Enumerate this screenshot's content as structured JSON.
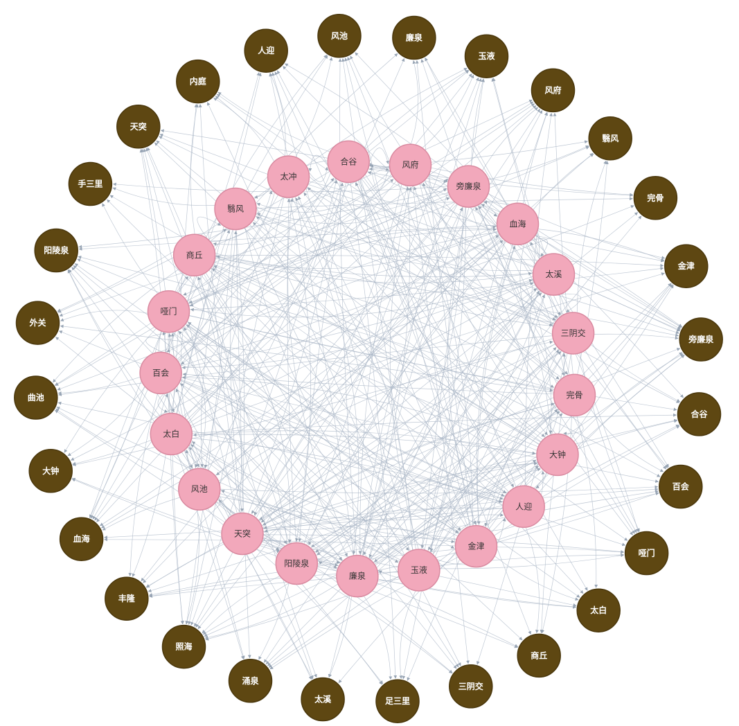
{
  "graph": {
    "colors": {
      "outer_fill": "#5e4712",
      "outer_stroke": "#4a370c",
      "inner_fill": "#f2a8bb",
      "inner_stroke": "#d98aa0",
      "edge": "#a9b6c5",
      "arrow": "#97a4b4"
    },
    "outer_nodes": [
      "风池",
      "廉泉",
      "玉液",
      "风府",
      "翳风",
      "完骨",
      "金津",
      "旁廉泉",
      "合谷",
      "百会",
      "哑门",
      "太白",
      "商丘",
      "三阴交",
      "足三里",
      "太溪",
      "涌泉",
      "照海",
      "丰隆",
      "血海",
      "大钟",
      "曲池",
      "外关",
      "阳陵泉",
      "手三里",
      "天突",
      "内庭",
      "人迎"
    ],
    "inner_nodes": [
      "合谷",
      "风府",
      "旁廉泉",
      "血海",
      "太溪",
      "三阴交",
      "完骨",
      "大钟",
      "人迎",
      "金津",
      "玉液",
      "廉泉",
      "阳陵泉",
      "天突",
      "风池",
      "太白",
      "百会",
      "哑门",
      "商丘",
      "翳风",
      "太冲"
    ]
  }
}
